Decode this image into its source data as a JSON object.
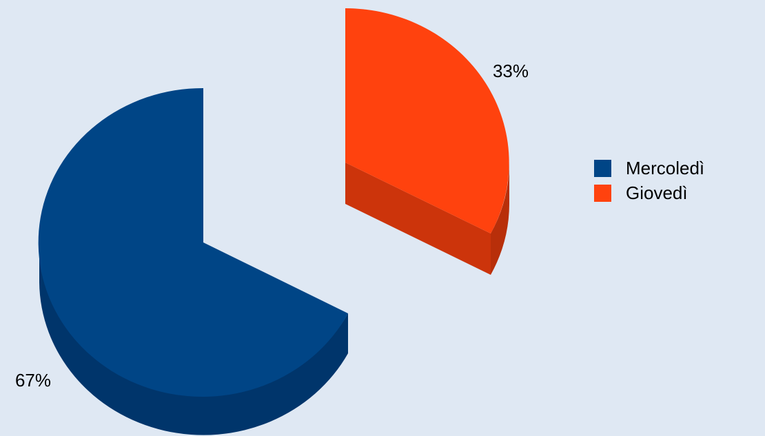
{
  "chart_data": {
    "type": "pie",
    "style": "3d-exploded",
    "title": "",
    "slices": [
      {
        "name": "Mercoledì",
        "value": 67,
        "label": "67%",
        "color": "#004586",
        "shade": "#00356b"
      },
      {
        "name": "Giovedì",
        "value": 33,
        "label": "33%",
        "color": "#ff420e",
        "shade": "#cc340b"
      }
    ],
    "legend": {
      "placement": "right",
      "items": [
        "Mercoledì",
        "Giovedì"
      ]
    },
    "background_color": "#dfe8f3"
  }
}
